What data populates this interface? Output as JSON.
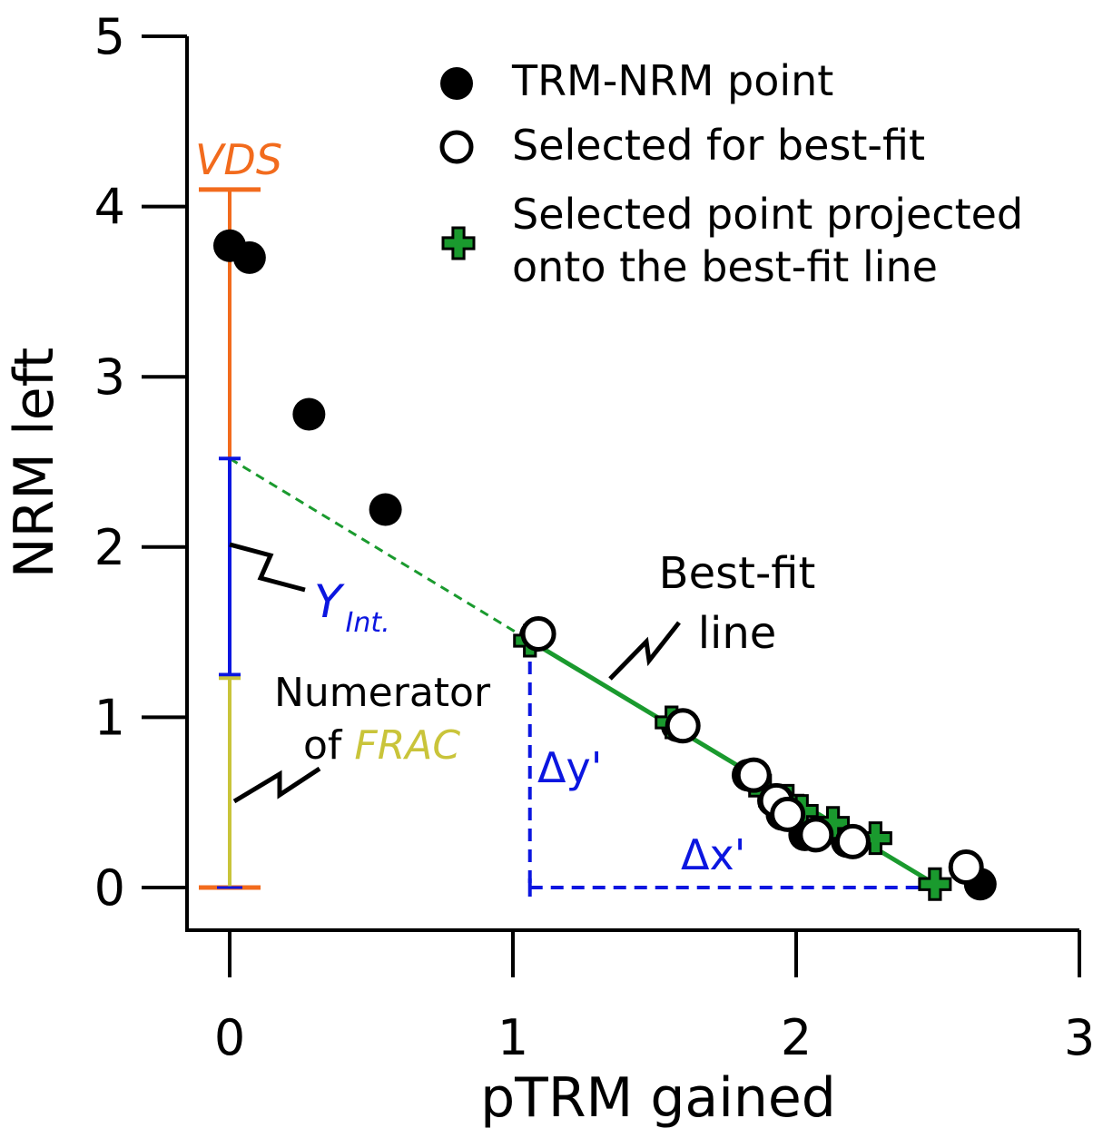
{
  "chart_data": {
    "type": "scatter",
    "xlabel": "pTRM gained",
    "ylabel": "NRM left",
    "xlim": [
      -0.15,
      3.0
    ],
    "ylim": [
      -0.25,
      5.0
    ],
    "x_ticks": [
      "0",
      "1",
      "2",
      "3"
    ],
    "y_ticks": [
      "0",
      "1",
      "2",
      "3",
      "4",
      "5"
    ],
    "grid": false,
    "legend": {
      "placement": "top-right",
      "items": [
        {
          "label": "TRM-NRM point",
          "marker": "filled-circle"
        },
        {
          "label": "Selected for best-fit",
          "marker": "open-circle"
        },
        {
          "label_line1": "Selected point projected",
          "label_line2": "onto the best-fit line",
          "marker": "green-plus"
        }
      ]
    },
    "series": [
      {
        "name": "TRM-NRM point",
        "points": [
          [
            0.0,
            3.77
          ],
          [
            0.07,
            3.7
          ],
          [
            0.28,
            2.78
          ],
          [
            0.55,
            2.22
          ],
          [
            1.08,
            1.48
          ],
          [
            1.58,
            0.95
          ],
          [
            1.83,
            0.66
          ],
          [
            1.92,
            0.51
          ],
          [
            1.95,
            0.43
          ],
          [
            2.03,
            0.31
          ],
          [
            2.18,
            0.27
          ],
          [
            2.6,
            0.12
          ],
          [
            2.65,
            0.02
          ]
        ]
      },
      {
        "name": "Selected for best-fit",
        "points": [
          [
            1.09,
            1.49
          ],
          [
            1.6,
            0.95
          ],
          [
            1.85,
            0.66
          ],
          [
            1.93,
            0.51
          ],
          [
            1.97,
            0.43
          ],
          [
            2.07,
            0.31
          ],
          [
            2.2,
            0.27
          ],
          [
            2.6,
            0.12
          ]
        ]
      },
      {
        "name": "Selected point projected onto the best-fit line",
        "points": [
          [
            1.06,
            1.45
          ],
          [
            1.56,
            0.97
          ],
          [
            1.89,
            0.57
          ],
          [
            1.97,
            0.51
          ],
          [
            2.02,
            0.45
          ],
          [
            2.13,
            0.38
          ],
          [
            2.28,
            0.29
          ],
          [
            2.49,
            0.02
          ]
        ]
      }
    ],
    "best_fit": {
      "label_line1": "Best-fit",
      "label_line2": "line",
      "y_intercept": 2.52,
      "solid_from": [
        1.06,
        1.45
      ],
      "solid_to": [
        2.49,
        0.02
      ],
      "color": "#1a9a2e"
    },
    "annotations": {
      "vds": {
        "label": "VDS",
        "color": "#f26b1d",
        "bottom": 0.0,
        "top": 4.1
      },
      "y_int": {
        "label": "Y",
        "subscript": "Int.",
        "color": "#0b16e0",
        "bottom": 1.25,
        "top": 2.52
      },
      "frac": {
        "label_line1": "Numerator",
        "label_prefix": "of ",
        "label_em": "FRAC",
        "color": "#c9c43a",
        "bottom": 0.0,
        "top": 1.23
      },
      "delta_y": {
        "label": "Δy'",
        "color": "#0b16e0"
      },
      "delta_x": {
        "label": "Δx'",
        "color": "#0b16e0"
      },
      "triangle": {
        "x0": 1.06,
        "x1": 2.49,
        "y0": 0.0,
        "y1": 1.45
      }
    },
    "colors": {
      "axis": "#000000",
      "filled_point": "#000000",
      "open_point_fill": "#ffffff",
      "plus_fill": "#1a9a2e",
      "plus_stroke": "#000000"
    }
  }
}
